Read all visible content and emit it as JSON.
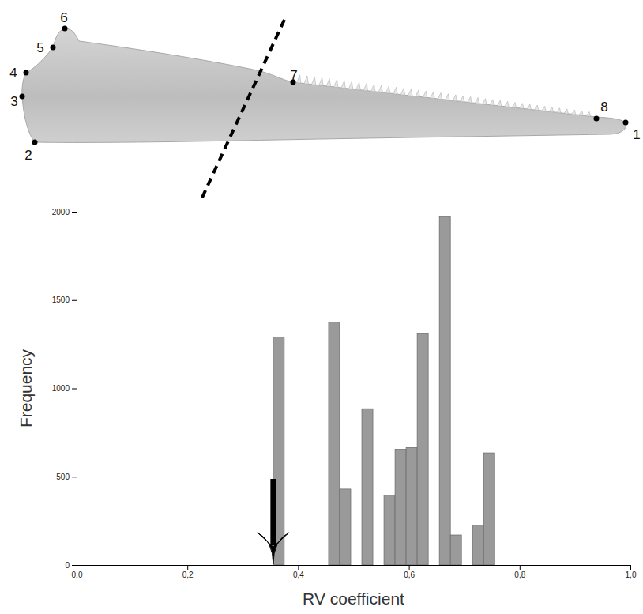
{
  "chart_data": {
    "type": "histogram",
    "x_label": "RV coefficient",
    "y_label": "Frequency",
    "bins": [
      0.355,
      0.375,
      0.395,
      0.415,
      0.435,
      0.455,
      0.475,
      0.495,
      0.515,
      0.535,
      0.555,
      0.575,
      0.595,
      0.615,
      0.635,
      0.655,
      0.675,
      0.695,
      0.715,
      0.735,
      0.755
    ],
    "values": [
      1290,
      0,
      0,
      0,
      0,
      1375,
      430,
      0,
      885,
      0,
      395,
      655,
      665,
      1310,
      0,
      1975,
      170,
      0,
      225,
      635
    ],
    "color": "#9a9a9a",
    "xlim": [
      0,
      1
    ],
    "xticks": [
      {
        "value": 0,
        "label": "0,0"
      },
      {
        "value": 0.2,
        "label": "0,2"
      },
      {
        "value": 0.4,
        "label": "0,4"
      },
      {
        "value": 0.6,
        "label": "0,6"
      },
      {
        "value": 0.8,
        "label": "0,8"
      },
      {
        "value": 1,
        "label": "1,0"
      }
    ],
    "ylim": [
      0,
      2000
    ],
    "yticks": [
      0,
      500,
      1000,
      1500,
      2000
    ],
    "observed": 0.355,
    "landmarks": [
      "1",
      "2",
      "3",
      "4",
      "5",
      "6",
      "7",
      "8"
    ]
  }
}
